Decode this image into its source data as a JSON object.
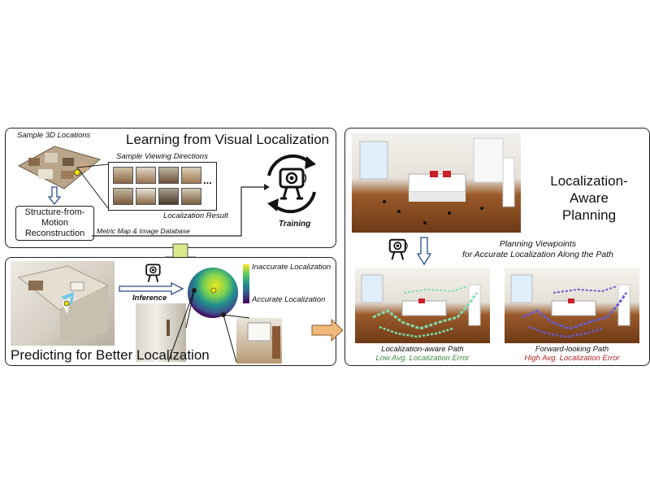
{
  "learning": {
    "title": "Learning from Visual Localization",
    "sample_locations": "Sample 3D Locations",
    "sample_directions": "Sample Viewing Directions",
    "ellipsis": "...",
    "localization_result": "Localization Result",
    "sfm_line1": "Structure-from-",
    "sfm_line2": "Motion",
    "sfm_line3": "Reconstruction",
    "metric_map": "Metric Map & Image Database",
    "training": "Training"
  },
  "predicting": {
    "title": "Predicting for Better Localization",
    "inference": "Inference",
    "inaccurate": "Inaccurate Localization",
    "accurate": "Accurate Localization"
  },
  "planning": {
    "title_line1": "Localization-Aware",
    "title_line2": "Planning",
    "viewpoints_line1": "Planning Viewpoints",
    "viewpoints_line2": "for Accurate Localization Along the Path",
    "left_caption": "Localization-aware Path",
    "left_sub": "Low Avg. Localization Error",
    "right_caption": "Forward-looking Path",
    "right_sub": "High Avg. Localization Error"
  },
  "colors": {
    "low_error": "#3e8e3e",
    "high_error": "#b02020",
    "arrow_fill": "#f0b87a",
    "arrow_green": "#dbe98a",
    "path_green": "#7fe0b0",
    "path_purple": "#6a5acd"
  },
  "icons": [
    "robot-camera-icon",
    "training-cycle-icon",
    "down-arrow-icon",
    "right-arrow-icon",
    "localization-sphere-icon",
    "colorbar-icon"
  ]
}
